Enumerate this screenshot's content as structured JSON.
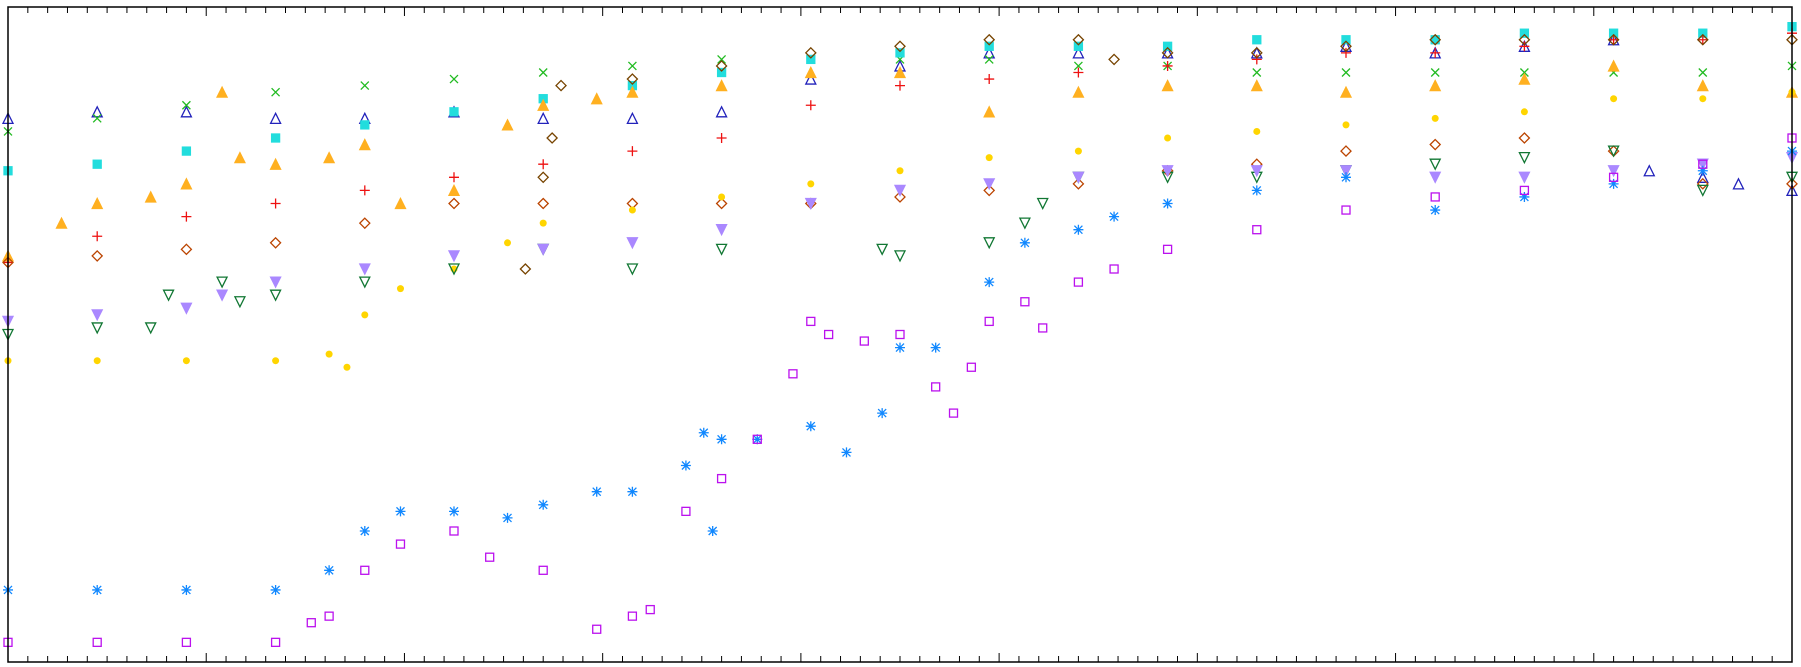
{
  "chart_data": {
    "type": "scatter",
    "title": "",
    "xlabel": "",
    "ylabel": "",
    "xlim": [
      0,
      100
    ],
    "ylim": [
      0,
      100
    ],
    "grid": false,
    "legend": "none",
    "series": [
      {
        "color": "#2222bb",
        "marker": "triangle-open",
        "x": [
          0,
          5,
          10,
          15,
          20,
          25,
          30,
          35,
          40,
          45,
          50,
          55,
          60,
          65,
          70,
          75,
          80,
          85,
          90,
          92,
          95,
          97,
          100
        ],
        "y": [
          83,
          84,
          84,
          83,
          83,
          84,
          83,
          83,
          84,
          89,
          91,
          93,
          93,
          93,
          93,
          94,
          93,
          94,
          95,
          75,
          74,
          73,
          72
        ]
      },
      {
        "color": "#22bb22",
        "marker": "x",
        "x": [
          0,
          5,
          10,
          15,
          20,
          25,
          30,
          35,
          40,
          45,
          50,
          55,
          60,
          65,
          70,
          75,
          80,
          85,
          90,
          95,
          100
        ],
        "y": [
          81,
          83,
          85,
          87,
          88,
          89,
          90,
          91,
          92,
          92,
          92,
          92,
          91,
          91,
          90,
          90,
          90,
          90,
          90,
          90,
          91
        ]
      },
      {
        "color": "#22dddd",
        "marker": "square",
        "x": [
          0,
          5,
          10,
          15,
          20,
          25,
          30,
          35,
          40,
          45,
          50,
          55,
          60,
          65,
          70,
          75,
          80,
          85,
          90,
          95,
          100
        ],
        "y": [
          75,
          76,
          78,
          80,
          82,
          84,
          86,
          88,
          90,
          92,
          93,
          94,
          94,
          94,
          95,
          95,
          95,
          96,
          96,
          96,
          97
        ]
      },
      {
        "color": "#ffb020",
        "marker": "triangle",
        "x": [
          0,
          3,
          5,
          8,
          10,
          12,
          13,
          15,
          18,
          20,
          22,
          25,
          28,
          30,
          33,
          35,
          40,
          45,
          50,
          55,
          60,
          65,
          70,
          75,
          80,
          85,
          90,
          95,
          100
        ],
        "y": [
          62,
          67,
          70,
          71,
          73,
          87,
          77,
          76,
          77,
          79,
          70,
          72,
          82,
          85,
          86,
          87,
          88,
          90,
          90,
          84,
          87,
          88,
          88,
          87,
          88,
          89,
          91,
          88,
          87
        ]
      },
      {
        "color": "#ee1111",
        "marker": "plus",
        "x": [
          0,
          5,
          10,
          15,
          20,
          25,
          30,
          35,
          40,
          45,
          50,
          55,
          60,
          65,
          70,
          75,
          80,
          85,
          90,
          95,
          100
        ],
        "y": [
          61,
          65,
          68,
          70,
          72,
          74,
          76,
          78,
          80,
          85,
          88,
          89,
          90,
          91,
          92,
          93,
          93,
          94,
          95,
          95,
          96
        ]
      },
      {
        "color": "#bb4400",
        "marker": "diamond-open",
        "x": [
          0,
          5,
          10,
          15,
          20,
          25,
          30,
          35,
          40,
          45,
          50,
          55,
          60,
          65,
          70,
          75,
          80,
          85,
          90,
          95,
          100
        ],
        "y": [
          61,
          62,
          63,
          64,
          67,
          70,
          70,
          70,
          70,
          70,
          71,
          72,
          73,
          75,
          76,
          78,
          79,
          80,
          78,
          73,
          73
        ]
      },
      {
        "color": "#774400",
        "marker": "diamond-open",
        "x": [
          29,
          30,
          30.5,
          31,
          35,
          40,
          45,
          50,
          55,
          60,
          62,
          65,
          70,
          75,
          80,
          85,
          90,
          95,
          100
        ],
        "y": [
          60,
          74,
          80,
          88,
          89,
          91,
          93,
          94,
          95,
          95,
          92,
          93,
          93,
          94,
          95,
          95,
          95,
          95,
          95
        ]
      },
      {
        "color": "#ffd500",
        "marker": "circle",
        "x": [
          0,
          5,
          10,
          15,
          18,
          19,
          20,
          22,
          25,
          28,
          30,
          35,
          40,
          45,
          50,
          55,
          60,
          65,
          70,
          75,
          80,
          85,
          90,
          95,
          100
        ],
        "y": [
          46,
          46,
          46,
          46,
          47,
          45,
          53,
          57,
          60,
          64,
          67,
          69,
          71,
          73,
          75,
          77,
          78,
          80,
          81,
          82,
          83,
          84,
          86,
          86,
          87
        ]
      },
      {
        "color": "#117733",
        "marker": "triangle-down-open",
        "x": [
          0,
          5,
          8,
          9,
          12,
          13,
          15,
          20,
          25,
          30,
          35,
          40,
          49,
          50,
          55,
          57,
          58,
          60,
          65,
          70,
          75,
          80,
          85,
          90,
          95,
          100
        ],
        "y": [
          50,
          51,
          51,
          56,
          58,
          55,
          56,
          58,
          60,
          63,
          60,
          63,
          63,
          62,
          64,
          67,
          70,
          74,
          74,
          74,
          75,
          76,
          77,
          78,
          72,
          74
        ]
      },
      {
        "color": "#aa88ff",
        "marker": "triangle-down",
        "x": [
          0,
          5,
          10,
          12,
          15,
          20,
          25,
          30,
          35,
          40,
          45,
          50,
          55,
          60,
          65,
          70,
          75,
          80,
          85,
          90,
          95,
          100
        ],
        "y": [
          52,
          53,
          54,
          56,
          58,
          60,
          62,
          63,
          64,
          66,
          70,
          72,
          73,
          74,
          75,
          75,
          75,
          74,
          74,
          75,
          76,
          77
        ]
      },
      {
        "color": "#1188ff",
        "marker": "asterisk",
        "x": [
          0,
          5,
          10,
          15,
          18,
          20,
          22,
          25,
          28,
          30,
          33,
          35,
          38,
          39,
          39.5,
          40,
          42,
          45,
          47,
          49,
          50,
          52,
          55,
          57,
          60,
          62,
          65,
          70,
          75,
          80,
          85,
          90,
          95,
          100
        ],
        "y": [
          11,
          11,
          11,
          11,
          14,
          20,
          23,
          23,
          22,
          24,
          26,
          26,
          30,
          35,
          20,
          34,
          34,
          36,
          32,
          38,
          48,
          48,
          58,
          64,
          66,
          68,
          70,
          72,
          74,
          69,
          71,
          73,
          75,
          78
        ]
      },
      {
        "color": "#bb11ee",
        "marker": "square-open",
        "x": [
          0,
          5,
          10,
          15,
          17,
          18,
          20,
          22,
          25,
          27,
          30,
          33,
          35,
          36,
          38,
          40,
          42,
          44,
          45,
          46,
          48,
          50,
          52,
          53,
          54,
          55,
          57,
          58,
          60,
          62,
          65,
          70,
          75,
          80,
          85,
          90,
          95,
          100
        ],
        "y": [
          3,
          3,
          3,
          3,
          6,
          7,
          14,
          18,
          20,
          16,
          14,
          5,
          7,
          8,
          23,
          28,
          34,
          44,
          52,
          50,
          49,
          50,
          42,
          38,
          45,
          52,
          55,
          51,
          58,
          60,
          63,
          66,
          69,
          71,
          72,
          74,
          76,
          80
        ]
      }
    ]
  }
}
